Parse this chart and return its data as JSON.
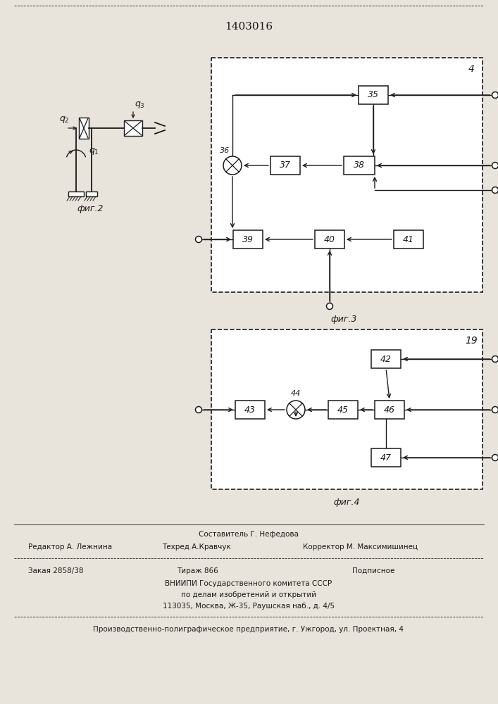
{
  "title": "1403016",
  "bg_color": "#e8e4dc",
  "line_color": "#1a1a1a",
  "footer": {
    "composer": "Составитель Г. Нефедова",
    "editor": "Редактор А. Лежнина",
    "techred": "Техред А.Кравчук",
    "corrector": "Корректор М. Максимишинец",
    "order": "Закая 2858/38",
    "tirazh": "Тираж 866",
    "podpisnoe": "Подписное",
    "line3": "ВНИИПИ Государственного комитета СССР",
    "line4": "по делам изобретений и открытий",
    "line5": "113035, Москва, Ж-35, Раушская наб., д. 4/5",
    "line6": "Производственно-полиграфическое предприятие, г. Ужгород, ул. Проектная, 4"
  }
}
